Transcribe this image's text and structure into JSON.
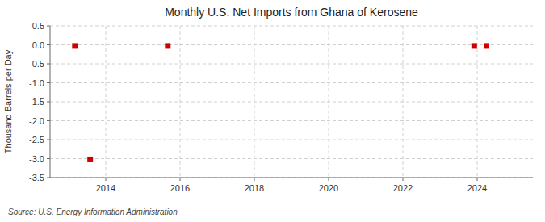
{
  "chart_data": {
    "type": "scatter",
    "title": "Monthly U.S. Net Imports from Ghana of Kerosene",
    "ylabel": "Thousand Barrels per Day",
    "source": "Source: U.S. Energy Information Administration",
    "x": [
      2013.17,
      2013.58,
      2015.67,
      2023.92,
      2024.25
    ],
    "values": [
      -0.03,
      -3.02,
      -0.03,
      -0.03,
      -0.03
    ],
    "color": "#cc0000",
    "marker": "square",
    "xlim": [
      2012.5,
      2025.5
    ],
    "ylim": [
      -3.5,
      0.5
    ],
    "xticks": [
      2014,
      2016,
      2018,
      2020,
      2022,
      2024
    ],
    "yticks": [
      0.5,
      {
        "value": 0,
        "label": "0.0"
      },
      -0.5,
      {
        "value": -1,
        "label": "-1.0"
      },
      -1.5,
      {
        "value": -2,
        "label": "-2.0"
      },
      -2.5,
      {
        "value": -3,
        "label": "-3.0"
      },
      -3.5
    ],
    "grid": true
  }
}
